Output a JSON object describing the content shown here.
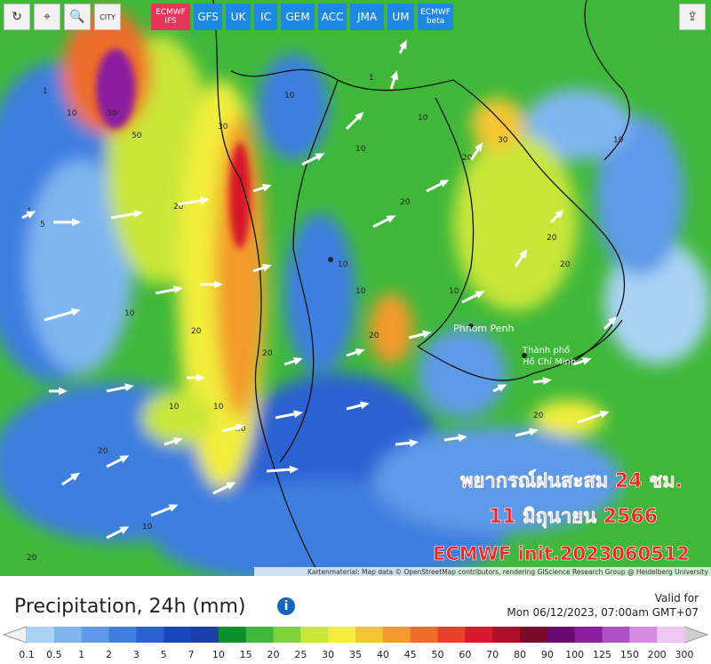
{
  "toolbar": {
    "buttons": [
      "CITY",
      "ECMWF IFS",
      "GFS",
      "UK",
      "IC",
      "GEM",
      "ACC",
      "JMA",
      "UM",
      "ECMWF beta"
    ]
  },
  "map": {
    "places": [
      "Phnom Penh",
      "Thành phố",
      "Hồ Chí Minh"
    ],
    "contour_labels": [
      "1",
      "10",
      "30",
      "50",
      "20",
      "30",
      "10",
      "1",
      "5",
      "20",
      "10",
      "20",
      "30",
      "10",
      "20",
      "10",
      "10",
      "20",
      "10",
      "20",
      "10",
      "20",
      "30",
      "10",
      "20",
      "10",
      "20",
      "1",
      "10",
      "20",
      "10",
      "20"
    ],
    "overlay": [
      "พยากรณ์ฝนสะสม 24 ชม.",
      "11 มิถุนายน 2566",
      "ECMWF init.2023060512"
    ],
    "attribution": "Kartenmaterial: Map data © OpenStreetMap contributors, rendering GIScience Research Group @ Heidelberg University"
  },
  "footer": {
    "title": "Precipitation, 24h (mm)",
    "valid_label": "Valid for",
    "valid_time": "Mon 06/12/2023, 07:00am GMT+07"
  },
  "legend": {
    "labels": [
      "0.1",
      "0.5",
      "1",
      "2",
      "3",
      "5",
      "7",
      "10",
      "15",
      "20",
      "25",
      "30",
      "35",
      "40",
      "45",
      "50",
      "60",
      "70",
      "80",
      "90",
      "100",
      "125",
      "150",
      "200",
      "300"
    ],
    "colors": [
      "#a9d3f5",
      "#7fb6f0",
      "#5d9ae8",
      "#3e7fe0",
      "#2a62d2",
      "#1a47b8",
      "#1e3fa8",
      "#0a8f2a",
      "#3fb83a",
      "#7fd23c",
      "#c9e639",
      "#f2ee3a",
      "#f6c630",
      "#f39a2a",
      "#ef6d2a",
      "#e9402a",
      "#d8182c",
      "#b00f2a",
      "#7a0a28",
      "#6a0a6e",
      "#8b1fa0",
      "#b04fc6",
      "#d58be0",
      "#f0c6f2"
    ]
  }
}
